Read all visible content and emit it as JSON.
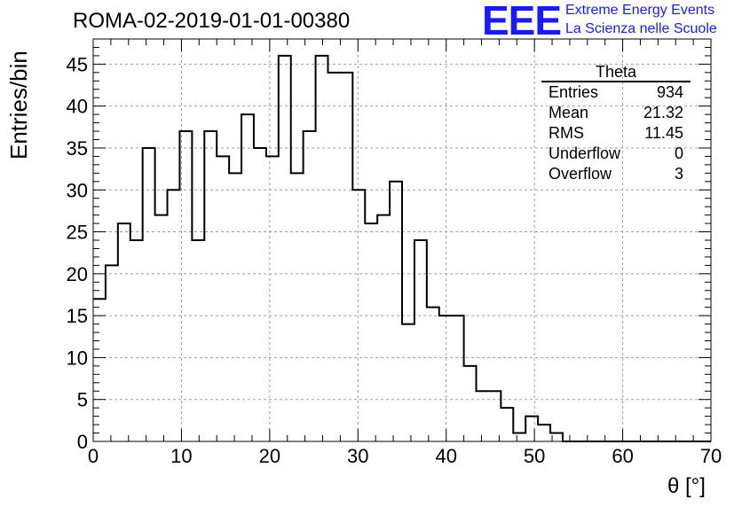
{
  "header": {
    "title": "ROMA-02-2019-01-01-00380",
    "logo_text": "EEE",
    "logo_line1": "Extreme Energy Events",
    "logo_line2": "La Scienza nelle Scuole"
  },
  "stats": {
    "title": "Theta",
    "rows": [
      {
        "label": "Entries",
        "value": "934"
      },
      {
        "label": "Mean",
        "value": "21.32"
      },
      {
        "label": "RMS",
        "value": "11.45"
      },
      {
        "label": "Underflow",
        "value": "0"
      },
      {
        "label": "Overflow",
        "value": "3"
      }
    ]
  },
  "chart_data": {
    "type": "bar",
    "histogram": true,
    "xlabel": "θ [°]",
    "ylabel": "Entries/bin",
    "xlim": [
      0,
      70
    ],
    "ylim": [
      0,
      48
    ],
    "bin_width": 1.4,
    "bin_start": 0,
    "values": [
      17,
      21,
      26,
      24,
      35,
      27,
      30,
      37,
      24,
      37,
      34,
      32,
      39,
      35,
      34,
      46,
      32,
      37,
      46,
      44,
      44,
      30,
      26,
      27,
      31,
      14,
      24,
      16,
      15,
      15,
      9,
      6,
      6,
      4,
      1,
      3,
      2,
      1,
      0,
      0,
      0,
      0,
      0,
      0,
      0,
      0,
      0,
      0,
      0,
      0
    ],
    "xticks": [
      0,
      10,
      20,
      30,
      40,
      50,
      60,
      70
    ],
    "yticks": [
      0,
      5,
      10,
      15,
      20,
      25,
      30,
      35,
      40,
      45
    ],
    "grid": true,
    "line_color": "#000000",
    "grid_color": "#a0a0a0"
  }
}
